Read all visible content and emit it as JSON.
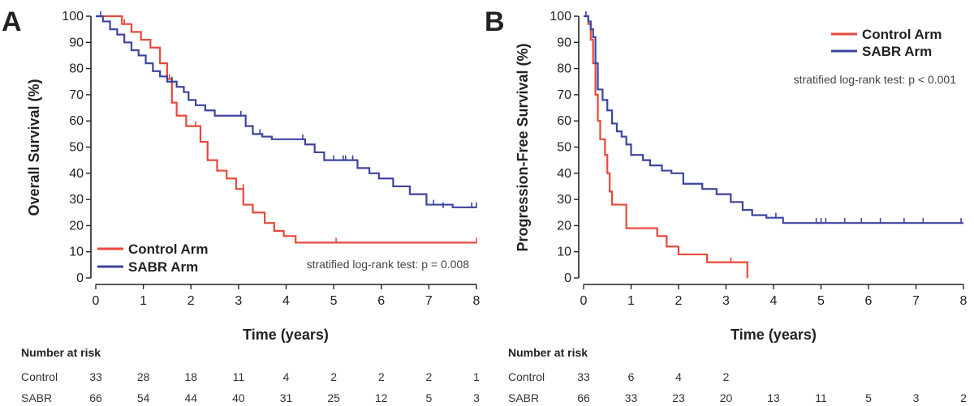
{
  "chart_data": [
    {
      "panel": "A",
      "type": "line",
      "xlabel": "Time (years)",
      "ylabel": "Overall Survival (%)",
      "xlim": [
        0,
        8
      ],
      "ylim": [
        0,
        100
      ],
      "xticks": [
        0,
        1,
        2,
        3,
        4,
        5,
        6,
        7,
        8
      ],
      "yticks": [
        0,
        10,
        20,
        30,
        40,
        50,
        60,
        70,
        80,
        90,
        100
      ],
      "legend_placement": "bottom-left",
      "annotation": "stratified log-rank test: p = 0.008",
      "series": [
        {
          "name": "Control Arm",
          "color": "#e8483b",
          "x": [
            0,
            0.55,
            0.75,
            0.95,
            1.15,
            1.35,
            1.5,
            1.6,
            1.7,
            1.9,
            2.2,
            2.35,
            2.55,
            2.75,
            2.95,
            3.1,
            3.3,
            3.55,
            3.75,
            3.95,
            4.2,
            8
          ],
          "y": [
            100,
            97,
            94,
            91,
            88,
            82,
            76,
            67,
            62,
            58,
            52,
            45,
            41,
            38,
            34,
            28,
            25,
            21,
            18,
            16,
            13.5,
            13.5
          ],
          "censor_x": [
            0.6,
            1.55,
            2.1,
            3.1,
            5.05,
            8.0
          ],
          "censor_y": [
            97,
            76,
            58,
            34,
            13.5,
            13.5
          ]
        },
        {
          "name": "SABR Arm",
          "color": "#3c44a0",
          "x": [
            0,
            0.15,
            0.3,
            0.45,
            0.6,
            0.75,
            0.9,
            1.05,
            1.2,
            1.35,
            1.5,
            1.7,
            1.85,
            1.95,
            2.1,
            2.3,
            2.5,
            3.15,
            3.3,
            3.5,
            3.7,
            4.4,
            4.6,
            4.8,
            5.5,
            5.75,
            5.95,
            6.25,
            6.6,
            6.95,
            7.5,
            8
          ],
          "y": [
            100,
            98,
            95,
            93,
            90,
            87,
            85,
            82,
            79,
            77,
            75,
            73,
            71,
            68,
            66,
            64,
            62,
            58,
            55,
            54,
            53,
            51,
            48,
            45,
            42,
            40,
            38,
            35,
            32,
            28,
            27,
            27
          ],
          "censor_x": [
            0.1,
            1.6,
            3.05,
            3.45,
            4.35,
            5.0,
            5.2,
            5.25,
            5.4,
            7.1,
            7.3,
            7.9,
            8.0
          ],
          "censor_y": [
            100,
            75,
            62,
            55,
            53,
            45,
            45,
            45,
            45,
            28,
            27,
            27,
            27
          ]
        }
      ],
      "risk_table": {
        "title": "Number at risk",
        "times": [
          0,
          1,
          2,
          3,
          4,
          5,
          6,
          7,
          8
        ],
        "rows": [
          {
            "label": "Control",
            "values": [
              "33",
              "28",
              "18",
              "11",
              "4",
              "2",
              "2",
              "2",
              "1"
            ]
          },
          {
            "label": "SABR",
            "values": [
              "66",
              "54",
              "44",
              "40",
              "31",
              "25",
              "12",
              "5",
              "3"
            ]
          }
        ]
      }
    },
    {
      "panel": "B",
      "type": "line",
      "xlabel": "Time (years)",
      "ylabel": "Progression-Free Survival (%)",
      "xlim": [
        0,
        8
      ],
      "ylim": [
        0,
        100
      ],
      "xticks": [
        0,
        1,
        2,
        3,
        4,
        5,
        6,
        7,
        8
      ],
      "yticks": [
        0,
        10,
        20,
        30,
        40,
        50,
        60,
        70,
        80,
        90,
        100
      ],
      "legend_placement": "top-right",
      "annotation": "stratified log-rank test: p < 0.001",
      "series": [
        {
          "name": "Control Arm",
          "color": "#e8483b",
          "x": [
            0,
            0.1,
            0.15,
            0.2,
            0.25,
            0.3,
            0.35,
            0.45,
            0.5,
            0.55,
            0.6,
            0.7,
            0.9,
            1.3,
            1.55,
            1.75,
            2.0,
            2.6,
            3.05,
            3.45
          ],
          "y": [
            100,
            97,
            91,
            82,
            70,
            60,
            53,
            47,
            40,
            33,
            28,
            28,
            19,
            19,
            16,
            12,
            9,
            6,
            6,
            0
          ],
          "censor_x": [
            3.1
          ],
          "censor_y": [
            6
          ]
        },
        {
          "name": "SABR Arm",
          "color": "#3c44a0",
          "x": [
            0,
            0.1,
            0.15,
            0.2,
            0.25,
            0.3,
            0.4,
            0.5,
            0.6,
            0.7,
            0.8,
            0.9,
            1.0,
            1.25,
            1.4,
            1.65,
            1.85,
            2.1,
            2.5,
            2.8,
            3.1,
            3.35,
            3.55,
            3.85,
            4.2,
            8
          ],
          "y": [
            100,
            98,
            95,
            92,
            82,
            72,
            68,
            64,
            59,
            56,
            54,
            51,
            47,
            45,
            43,
            41,
            40,
            36,
            34,
            32,
            29,
            26,
            24,
            23,
            21,
            21
          ],
          "censor_x": [
            0.05,
            4.05,
            4.9,
            5.0,
            5.1,
            5.5,
            5.85,
            6.25,
            6.75,
            7.15,
            7.95
          ],
          "censor_y": [
            100,
            23,
            21,
            21,
            21,
            21,
            21,
            21,
            21,
            21,
            21
          ]
        }
      ],
      "risk_table": {
        "title": "Number at risk",
        "times": [
          0,
          1,
          2,
          3,
          4,
          5,
          6,
          7,
          8
        ],
        "rows": [
          {
            "label": "Control",
            "values": [
              "33",
              "6",
              "4",
              "2",
              "",
              "",
              "",
              "",
              ""
            ]
          },
          {
            "label": "SABR",
            "values": [
              "66",
              "33",
              "23",
              "20",
              "13",
              "11",
              "5",
              "3",
              "2"
            ]
          }
        ]
      }
    }
  ]
}
